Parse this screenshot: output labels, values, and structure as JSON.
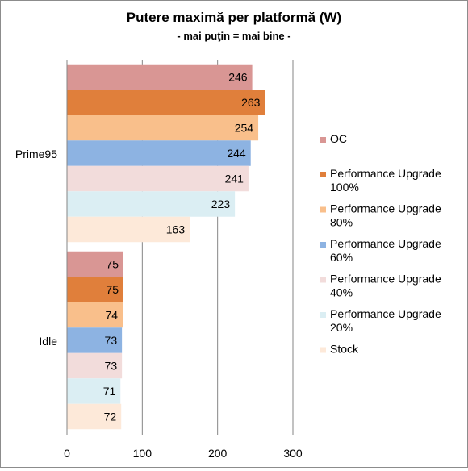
{
  "chart_data": {
    "type": "bar",
    "orientation": "horizontal",
    "title": "Putere maximă per platformă (W)",
    "subtitle": "- mai puţin = mai bine -",
    "categories": [
      "Prime95",
      "Idle"
    ],
    "series": [
      {
        "name": "OC",
        "color": "#d99694",
        "values": [
          246,
          75
        ]
      },
      {
        "name": "Performance Upgrade 100%",
        "color": "#e07f3b",
        "values": [
          263,
          75
        ]
      },
      {
        "name": "Performance Upgrade 80%",
        "color": "#f9bf8b",
        "values": [
          254,
          74
        ]
      },
      {
        "name": "Performance Upgrade 60%",
        "color": "#8db3e2",
        "values": [
          244,
          73
        ]
      },
      {
        "name": "Performance Upgrade 40%",
        "color": "#f2dcdb",
        "values": [
          241,
          73
        ]
      },
      {
        "name": "Performance Upgrade 20%",
        "color": "#dbeef3",
        "values": [
          223,
          71
        ]
      },
      {
        "name": "Stock",
        "color": "#fde9d9",
        "values": [
          163,
          72
        ]
      }
    ],
    "xlim": [
      0,
      300
    ],
    "xticks": [
      0,
      100,
      200,
      300
    ],
    "grid": true,
    "legend_position": "right",
    "data_labels": true
  }
}
